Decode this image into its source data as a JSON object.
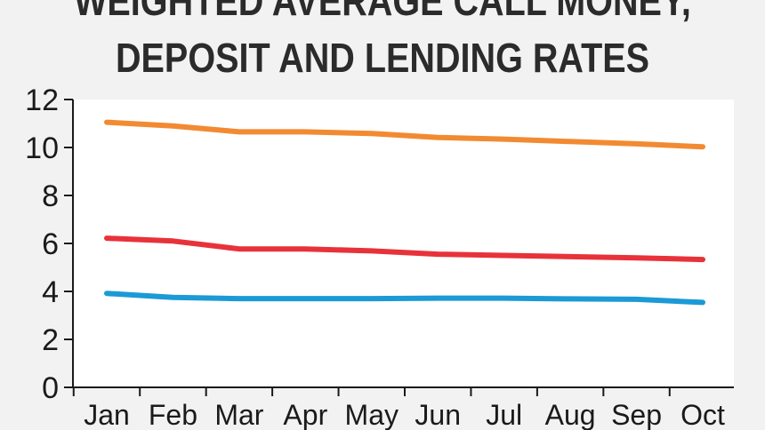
{
  "title_lines": [
    "WEIGHTED AVERAGE CALL MONEY,",
    "DEPOSIT AND LENDING RATES"
  ],
  "colors": {
    "lending": "#f28a32",
    "deposit": "#e8323a",
    "call_money": "#1b9ad6",
    "background": "#f2f2f2",
    "plot_area": "#ffffff"
  },
  "chart_data": {
    "type": "line",
    "title": "WEIGHTED AVERAGE CALL MONEY, DEPOSIT AND LENDING RATES",
    "xlabel": "",
    "ylabel": "",
    "categories": [
      "Jan",
      "Feb",
      "Mar",
      "Apr",
      "May",
      "Jun",
      "Jul",
      "Aug",
      "Sep",
      "Oct"
    ],
    "ylim": [
      0,
      12
    ],
    "yticks": [
      "0",
      "2",
      "4",
      "6",
      "8",
      "10",
      "12"
    ],
    "grid": false,
    "legend": "none",
    "series": [
      {
        "color": "#f28a32",
        "values": [
          11.05,
          10.9,
          10.65,
          10.65,
          10.58,
          10.42,
          10.35,
          10.25,
          10.15,
          10.03
        ]
      },
      {
        "color": "#e8323a",
        "values": [
          6.22,
          6.1,
          5.77,
          5.77,
          5.69,
          5.55,
          5.5,
          5.45,
          5.4,
          5.33
        ]
      },
      {
        "color": "#1b9ad6",
        "values": [
          3.92,
          3.75,
          3.7,
          3.7,
          3.7,
          3.72,
          3.72,
          3.69,
          3.67,
          3.54
        ]
      }
    ]
  }
}
